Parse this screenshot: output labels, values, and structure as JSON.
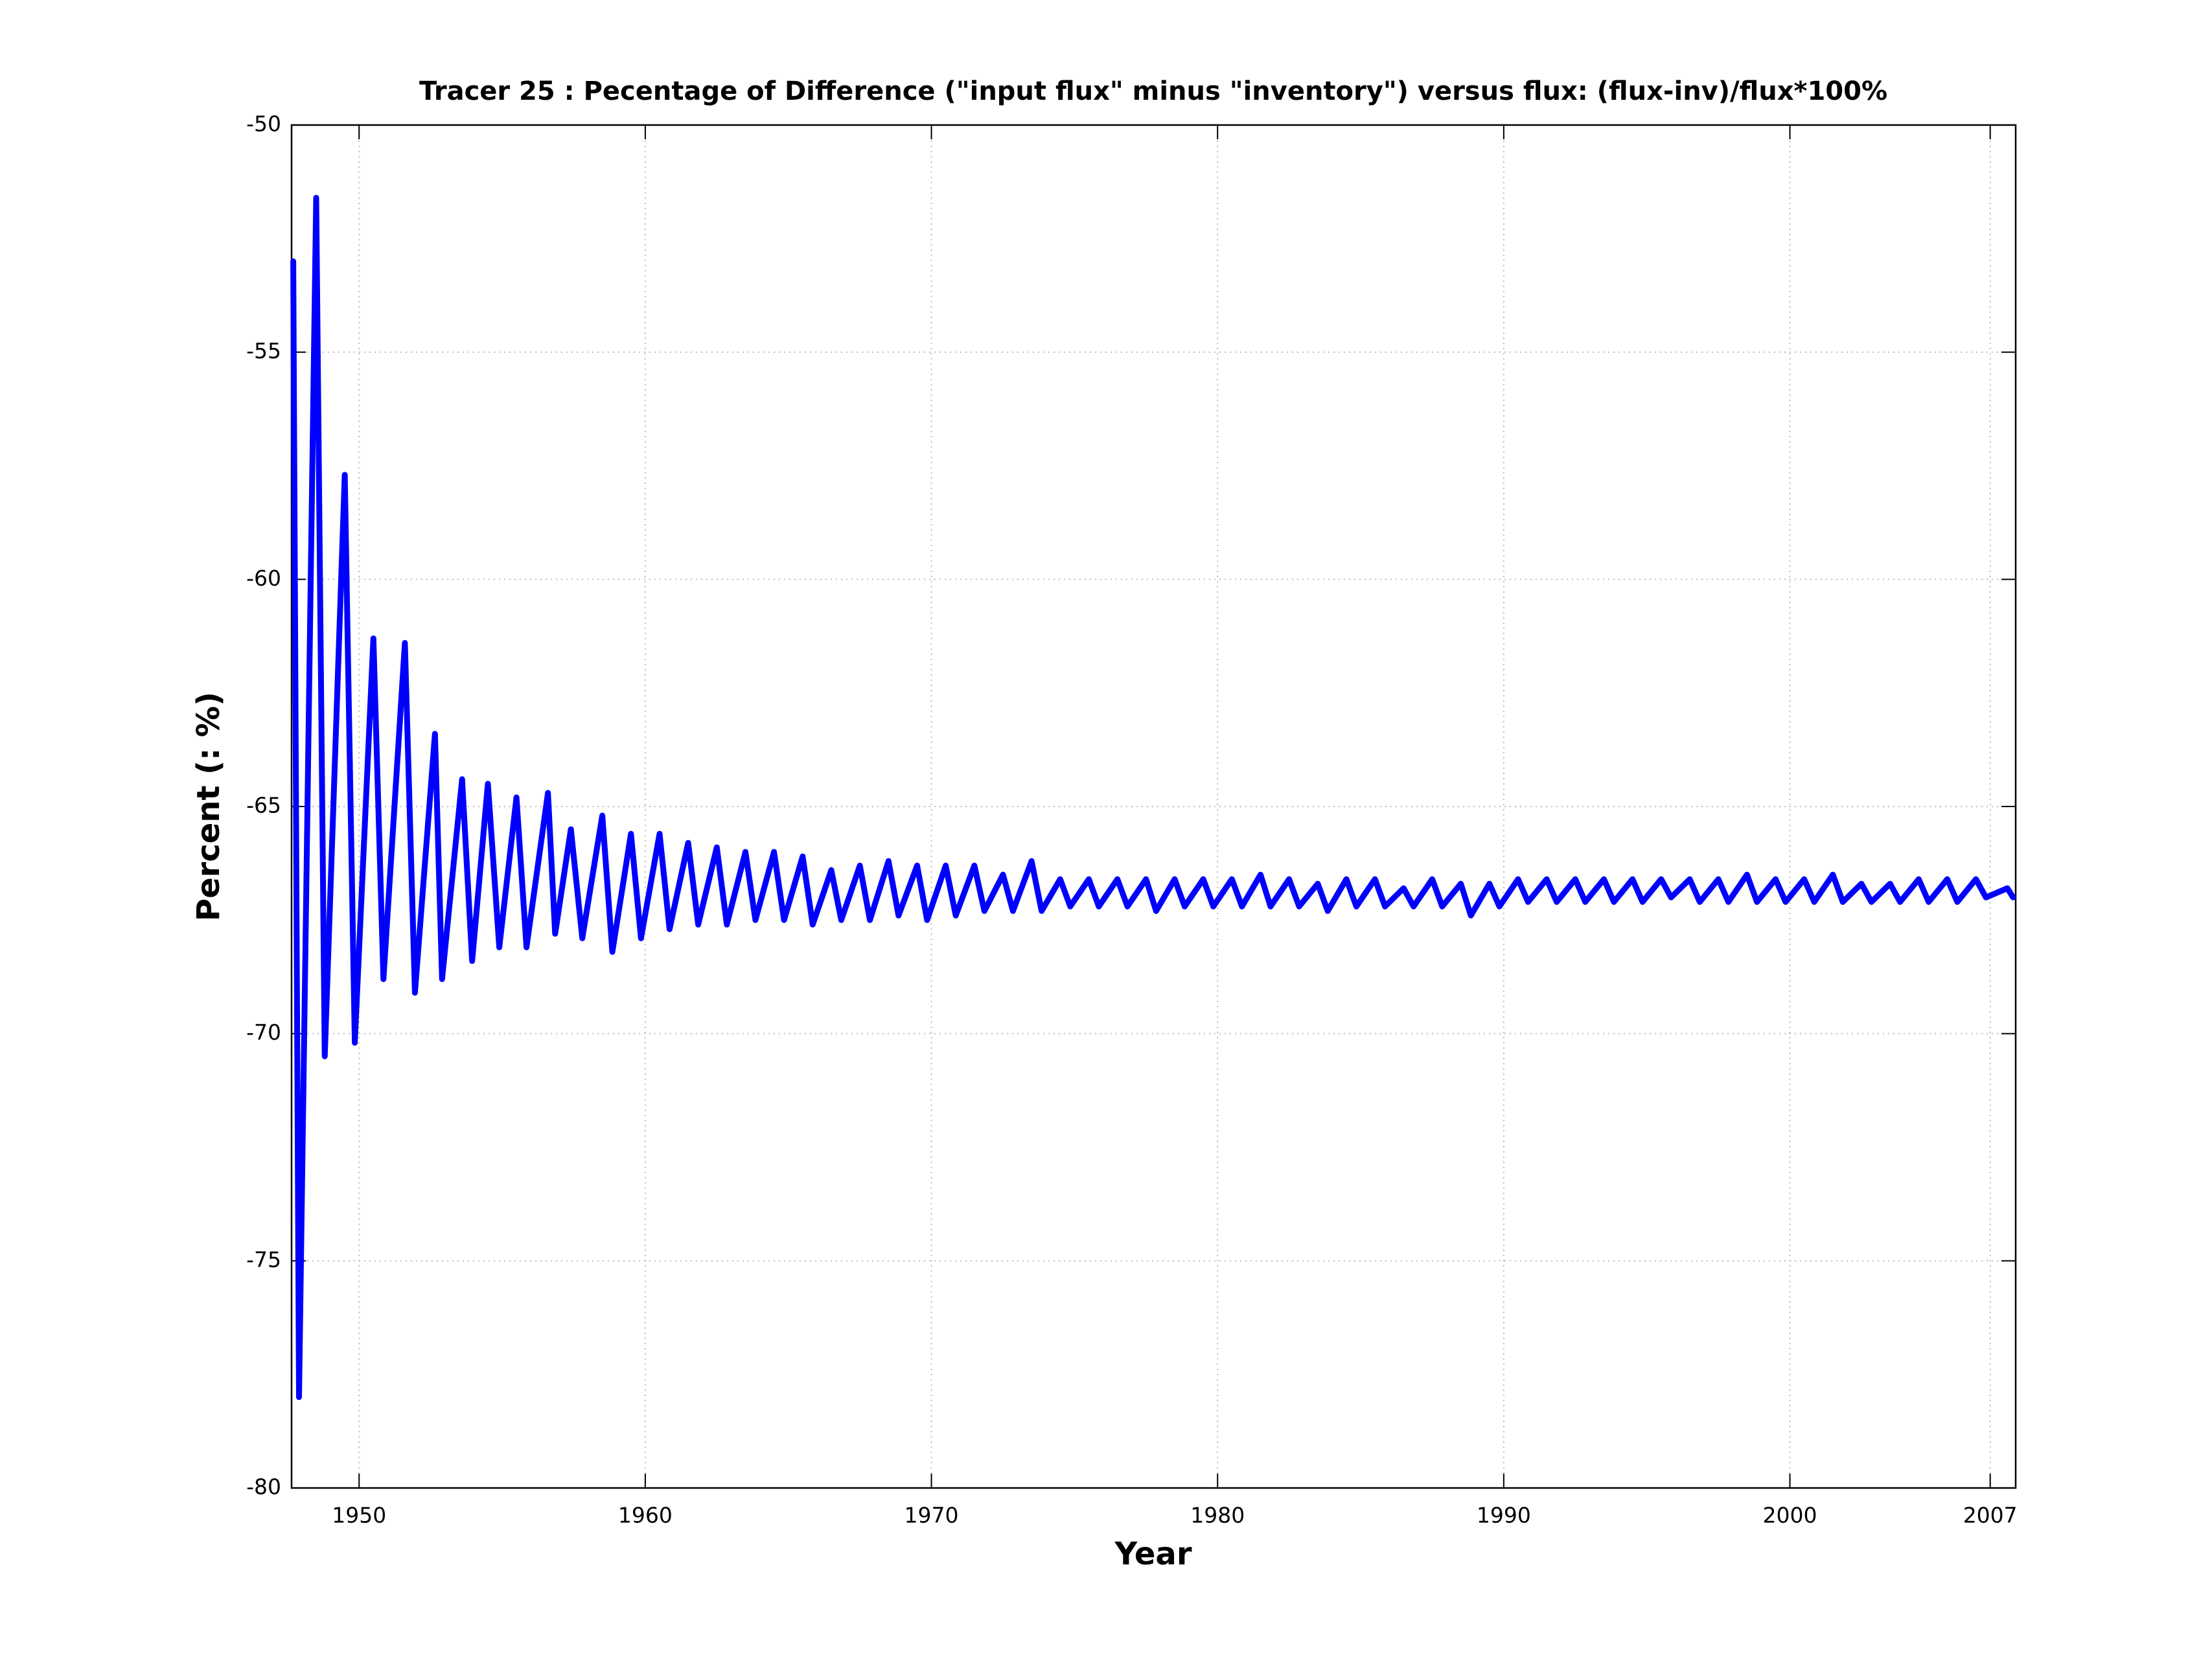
{
  "chart_data": {
    "type": "line",
    "title": "Tracer 25 : Pecentage of Difference (\"input flux\" minus \"inventory\") versus flux: (flux-inv)/flux*100%",
    "x_label": "Year",
    "y_label": "Percent (: %)",
    "color": "#0000ff",
    "grid": true,
    "xlim": [
      1947.64,
      2007.89
    ],
    "xticks": [
      1950,
      1960,
      1970,
      1980,
      1990,
      2000,
      2007
    ],
    "ylim": [
      -80,
      -50
    ],
    "yticks": [
      -80,
      -75,
      -70,
      -65,
      -60,
      -55,
      -50
    ],
    "x": [
      1947.7,
      1947.9,
      1948.5,
      1948.8,
      1949.5,
      1949.85,
      1950.5,
      1950.85,
      1951.6,
      1951.95,
      1952.65,
      1952.9,
      1953.6,
      1953.95,
      1954.5,
      1954.9,
      1955.5,
      1955.85,
      1956.6,
      1956.85,
      1957.4,
      1957.8,
      1958.5,
      1958.85,
      1959.5,
      1959.85,
      1960.5,
      1960.85,
      1961.5,
      1961.85,
      1962.5,
      1962.85,
      1963.5,
      1963.85,
      1964.5,
      1964.85,
      1965.5,
      1965.85,
      1966.5,
      1966.85,
      1967.5,
      1967.85,
      1968.5,
      1968.85,
      1969.5,
      1969.85,
      1970.5,
      1970.85,
      1971.5,
      1971.85,
      1972.5,
      1972.85,
      1973.5,
      1973.85,
      1974.5,
      1974.85,
      1975.5,
      1975.85,
      1976.5,
      1976.85,
      1977.5,
      1977.85,
      1978.5,
      1978.85,
      1979.5,
      1979.85,
      1980.5,
      1980.85,
      1981.5,
      1981.85,
      1982.5,
      1982.85,
      1983.5,
      1983.85,
      1984.5,
      1984.85,
      1985.5,
      1985.85,
      1986.5,
      1986.85,
      1987.5,
      1987.85,
      1988.5,
      1988.85,
      1989.5,
      1989.85,
      1990.5,
      1990.85,
      1991.5,
      1991.85,
      1992.5,
      1992.85,
      1993.5,
      1993.85,
      1994.5,
      1994.85,
      1995.5,
      1995.85,
      1996.5,
      1996.85,
      1997.5,
      1997.85,
      1998.5,
      1998.85,
      1999.5,
      1999.85,
      2000.5,
      2000.85,
      2001.5,
      2001.85,
      2002.5,
      2002.85,
      2003.5,
      2003.85,
      2004.5,
      2004.85,
      2005.5,
      2005.85,
      2006.5,
      2006.85,
      2007.6,
      2007.8
    ],
    "values": [
      -53.0,
      -78.0,
      -51.6,
      -70.5,
      -57.7,
      -70.2,
      -61.3,
      -68.8,
      -61.4,
      -69.1,
      -63.4,
      -68.8,
      -64.4,
      -68.4,
      -64.5,
      -68.1,
      -64.8,
      -68.1,
      -64.7,
      -67.8,
      -65.5,
      -67.9,
      -65.2,
      -68.2,
      -65.6,
      -67.9,
      -65.6,
      -67.7,
      -65.8,
      -67.6,
      -65.9,
      -67.6,
      -66.0,
      -67.5,
      -66.0,
      -67.5,
      -66.1,
      -67.6,
      -66.4,
      -67.5,
      -66.3,
      -67.5,
      -66.2,
      -67.4,
      -66.3,
      -67.5,
      -66.3,
      -67.4,
      -66.3,
      -67.3,
      -66.5,
      -67.3,
      -66.2,
      -67.3,
      -66.6,
      -67.2,
      -66.6,
      -67.2,
      -66.6,
      -67.2,
      -66.6,
      -67.3,
      -66.6,
      -67.2,
      -66.6,
      -67.2,
      -66.6,
      -67.2,
      -66.5,
      -67.2,
      -66.6,
      -67.2,
      -66.7,
      -67.3,
      -66.6,
      -67.2,
      -66.6,
      -67.2,
      -66.8,
      -67.2,
      -66.6,
      -67.2,
      -66.7,
      -67.4,
      -66.7,
      -67.2,
      -66.6,
      -67.1,
      -66.6,
      -67.1,
      -66.6,
      -67.1,
      -66.6,
      -67.1,
      -66.6,
      -67.1,
      -66.6,
      -67.0,
      -66.6,
      -67.1,
      -66.6,
      -67.1,
      -66.5,
      -67.1,
      -66.6,
      -67.1,
      -66.6,
      -67.1,
      -66.5,
      -67.1,
      -66.7,
      -67.1,
      -66.7,
      -67.1,
      -66.6,
      -67.1,
      -66.6,
      -67.1,
      -66.6,
      -67.0,
      -66.8,
      -67.0
    ]
  }
}
